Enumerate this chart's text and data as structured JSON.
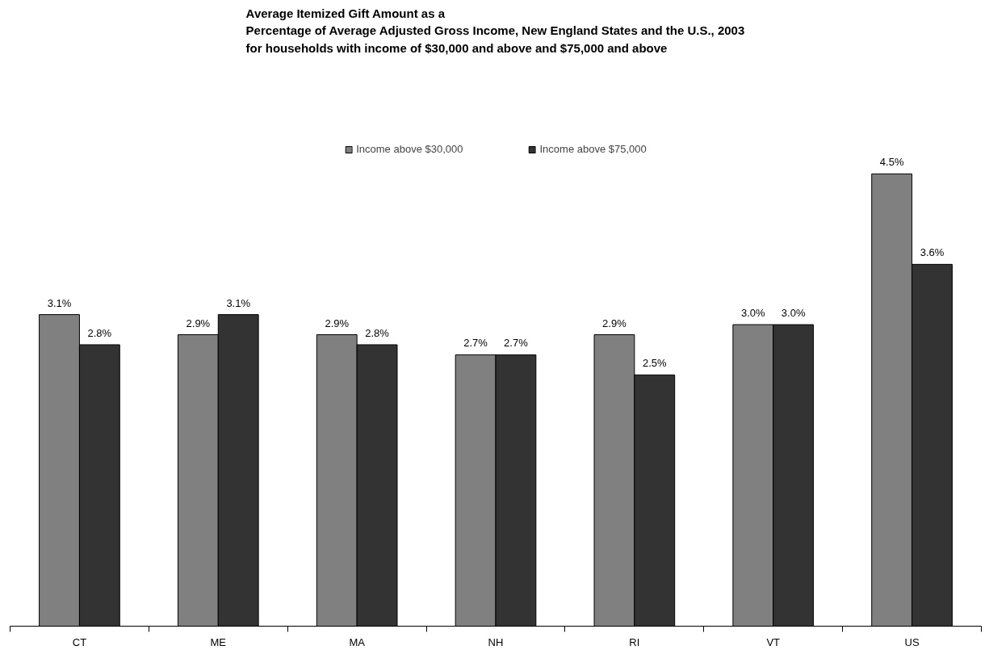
{
  "chart_data": {
    "type": "bar",
    "title": "Average Itemized Gift Amount as a\nPercentage of Average Adjusted Gross Income, New England States and the U.S., 2003\nfor households with income of $30,000 and above and $75,000 and above",
    "categories": [
      "CT",
      "ME",
      "MA",
      "NH",
      "RI",
      "VT",
      "US"
    ],
    "legend": "top",
    "data_labels": true,
    "series": [
      {
        "name": "Income above $30,000",
        "color": "#808080",
        "values": [
          3.1,
          2.9,
          2.9,
          2.7,
          2.9,
          3.0,
          4.5
        ],
        "value_labels": [
          "3.1%",
          "2.9%",
          "2.9%",
          "2.7%",
          "2.9%",
          "3.0%",
          "4.5%"
        ]
      },
      {
        "name": "Income above $75,000",
        "color": "#333333",
        "values": [
          2.8,
          3.1,
          2.8,
          2.7,
          2.5,
          3.0,
          3.6
        ],
        "value_labels": [
          "2.8%",
          "3.1%",
          "2.8%",
          "2.7%",
          "2.5%",
          "3.0%",
          "3.6%"
        ]
      }
    ]
  }
}
